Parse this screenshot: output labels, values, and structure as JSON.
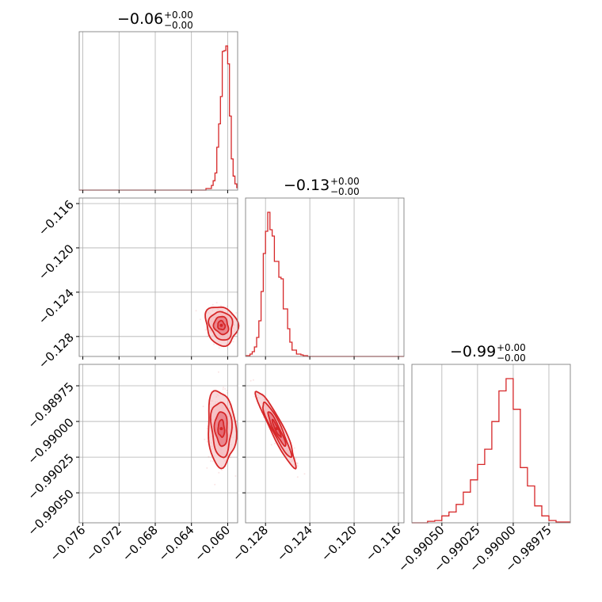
{
  "colors": {
    "series": "#d62728",
    "fill_inner": "#e3616b",
    "fill_outer": "#f4b9bd",
    "grid": "#b0b0b0",
    "axis": "#808080"
  },
  "chart_data": {
    "type": "corner",
    "titles": [
      {
        "main": "−0.06",
        "sup": "+0.00",
        "sub": "−0.00"
      },
      {
        "main": "−0.13",
        "sup": "+0.00",
        "sub": "−0.00"
      },
      {
        "main": "−0.99",
        "sup": "+0.00",
        "sub": "−0.00"
      }
    ],
    "params": [
      {
        "range": [
          -0.0764,
          -0.0589
        ],
        "ticks": [
          -0.076,
          -0.072,
          -0.068,
          -0.064,
          -0.06
        ],
        "tick_labels": [
          "−0.076",
          "−0.072",
          "−0.068",
          "−0.064",
          "−0.060"
        ]
      },
      {
        "range": [
          -0.1298,
          -0.1155
        ],
        "ticks": [
          -0.128,
          -0.124,
          -0.12,
          -0.116
        ],
        "tick_labels": [
          "−0.128",
          "−0.124",
          "−0.120",
          "−0.116"
        ]
      },
      {
        "range": [
          -0.99071,
          -0.9896
        ],
        "ticks": [
          -0.9905,
          -0.99025,
          -0.99,
          -0.98975
        ],
        "tick_labels": [
          "−0.99050",
          "−0.99025",
          "−0.99000",
          "−0.98975"
        ]
      }
    ],
    "histograms": [
      {
        "edges": [
          -0.0764,
          -0.0624,
          -0.0618,
          -0.0616,
          -0.0614,
          -0.0612,
          -0.061,
          -0.0608,
          -0.0606,
          -0.0604,
          -0.0602,
          -0.06,
          -0.0598,
          -0.0596,
          -0.0594,
          -0.0592,
          -0.059,
          -0.0589
        ],
        "counts": [
          0,
          2,
          6,
          12,
          22,
          55,
          85,
          120,
          178,
          179,
          185,
          162,
          95,
          40,
          18,
          8,
          3
        ]
      },
      {
        "edges": [
          -0.1298,
          -0.1294,
          -0.1292,
          -0.129,
          -0.1288,
          -0.1286,
          -0.1284,
          -0.1282,
          -0.128,
          -0.1278,
          -0.1276,
          -0.1274,
          -0.1272,
          -0.127,
          -0.1268,
          -0.1266,
          -0.1264,
          -0.1262,
          -0.126,
          -0.1258,
          -0.1256,
          -0.1254,
          -0.1252,
          -0.125,
          -0.1248,
          -0.1246,
          -0.1244,
          -0.1242,
          -0.1155
        ],
        "counts": [
          1,
          3,
          6,
          12,
          24,
          45,
          82,
          130,
          158,
          182,
          160,
          152,
          120,
          120,
          100,
          98,
          60,
          60,
          35,
          18,
          8,
          8,
          3,
          3,
          2,
          1,
          1,
          0
        ]
      },
      {
        "edges": [
          -0.99071,
          -0.9906,
          -0.99055,
          -0.9905,
          -0.99045,
          -0.9904,
          -0.99035,
          -0.9903,
          -0.99025,
          -0.9902,
          -0.99015,
          -0.9901,
          -0.99005,
          -0.99,
          -0.98995,
          -0.9899,
          -0.98985,
          -0.9898,
          -0.98975,
          -0.9897,
          -0.9896
        ],
        "counts": [
          0,
          2,
          3,
          9,
          14,
          24,
          40,
          56,
          76,
          96,
          132,
          172,
          188,
          148,
          72,
          48,
          22,
          9,
          3,
          1
        ]
      }
    ],
    "scatter_pairs": [
      {
        "x_param": 0,
        "y_param": 1,
        "center": [
          -0.0607,
          -0.127
        ],
        "sd": [
          0.0008,
          0.0008
        ],
        "rho": -0.15
      },
      {
        "x_param": 0,
        "y_param": 2,
        "center": [
          -0.0607,
          -0.99005
        ],
        "sd": [
          0.0007,
          0.00012
        ],
        "rho": -0.1
      },
      {
        "x_param": 1,
        "y_param": 2,
        "center": [
          -0.127,
          -0.99005
        ],
        "sd": [
          0.0008,
          0.00012
        ],
        "rho": -0.93
      }
    ]
  }
}
